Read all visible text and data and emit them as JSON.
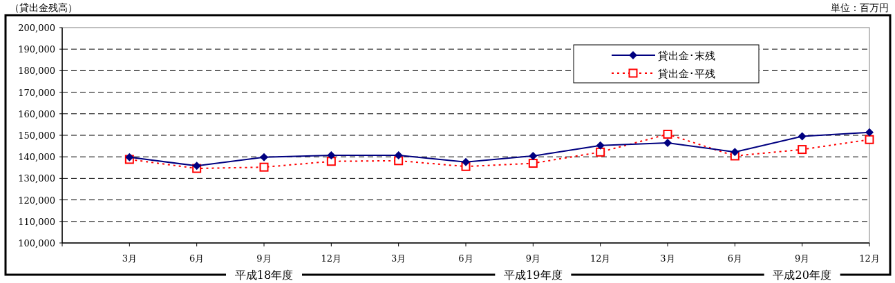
{
  "chart_data": {
    "type": "line",
    "title": "（貸出金残高）",
    "annotations": [
      "単位：百万円",
      "平成18年度",
      "平成19年度",
      "平成20年度"
    ],
    "categories": [
      null,
      "3月",
      "6月",
      "9月",
      "12月",
      "3月",
      "6月",
      "9月",
      "12月",
      "3月",
      "6月",
      "9月",
      "12月"
    ],
    "series": [
      {
        "name": "貸出金･末残",
        "color": "#000080",
        "marker": "diamond",
        "line_style": "solid",
        "values": [
          null,
          139800,
          135800,
          139800,
          140700,
          140700,
          137600,
          140400,
          145300,
          146500,
          142200,
          149500,
          151400
        ]
      },
      {
        "name": "貸出金･平残",
        "color": "#ff0000",
        "marker": "square",
        "line_style": "dotted",
        "values": [
          null,
          138800,
          134600,
          135200,
          137900,
          138200,
          135500,
          137000,
          142200,
          150500,
          140400,
          143400,
          148000
        ]
      }
    ],
    "ylim": [
      100000,
      200000
    ],
    "yticks": [
      {
        "value": 100000,
        "label": "100,000"
      },
      {
        "value": 110000,
        "label": "110,000"
      },
      {
        "value": 120000,
        "label": "120,000"
      },
      {
        "value": 130000,
        "label": "130,000"
      },
      {
        "value": 140000,
        "label": "140,000"
      },
      {
        "value": 150000,
        "label": "150,000"
      },
      {
        "value": 160000,
        "label": "160,000"
      },
      {
        "value": 170000,
        "label": "170,000"
      },
      {
        "value": 180000,
        "label": "180,000"
      },
      {
        "value": 190000,
        "label": "190,000"
      },
      {
        "value": 200000,
        "label": "200,000"
      }
    ],
    "grid": "y",
    "legend": "top right"
  }
}
